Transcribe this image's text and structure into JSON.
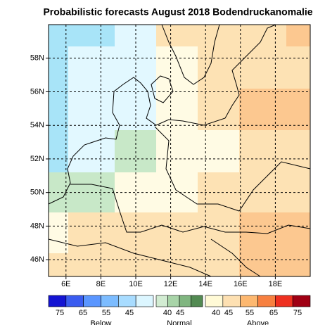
{
  "chart_data": {
    "type": "map",
    "title": "Probabilistic forecasts August 2018 Bodendruckanomalie",
    "xlim": [
      5,
      20
    ],
    "ylim": [
      45,
      60
    ],
    "xticks": [
      {
        "value": 6,
        "label": "6E"
      },
      {
        "value": 8,
        "label": "8E"
      },
      {
        "value": 10,
        "label": "10E"
      },
      {
        "value": 12,
        "label": "12E"
      },
      {
        "value": 14,
        "label": "14E"
      },
      {
        "value": 16,
        "label": "16E"
      },
      {
        "value": 18,
        "label": "18E"
      }
    ],
    "yticks": [
      {
        "value": 46,
        "label": "46N"
      },
      {
        "value": 48,
        "label": "48N"
      },
      {
        "value": 50,
        "label": "50N"
      },
      {
        "value": 52,
        "label": "52N"
      },
      {
        "value": 54,
        "label": "54N"
      },
      {
        "value": 56,
        "label": "56N"
      },
      {
        "value": 58,
        "label": "58N"
      }
    ],
    "grid": true,
    "legend": [
      {
        "name": "Below",
        "labels": [
          75,
          65,
          55,
          45
        ],
        "colors": [
          "#1414d2",
          "#3a5cf0",
          "#5a96ff",
          "#7cbcff",
          "#a8dcff",
          "#dcf6ff"
        ]
      },
      {
        "name": "Normal",
        "labels": [
          40,
          45
        ],
        "colors": [
          "#d2ecd2",
          "#a8d4a8",
          "#80b680",
          "#528a52"
        ]
      },
      {
        "name": "Above",
        "labels": [
          40,
          45,
          55,
          65,
          75
        ],
        "colors": [
          "#fffad6",
          "#fde0b2",
          "#fdb870",
          "#f78040",
          "#ee3020",
          "#a00014"
        ]
      }
    ]
  }
}
